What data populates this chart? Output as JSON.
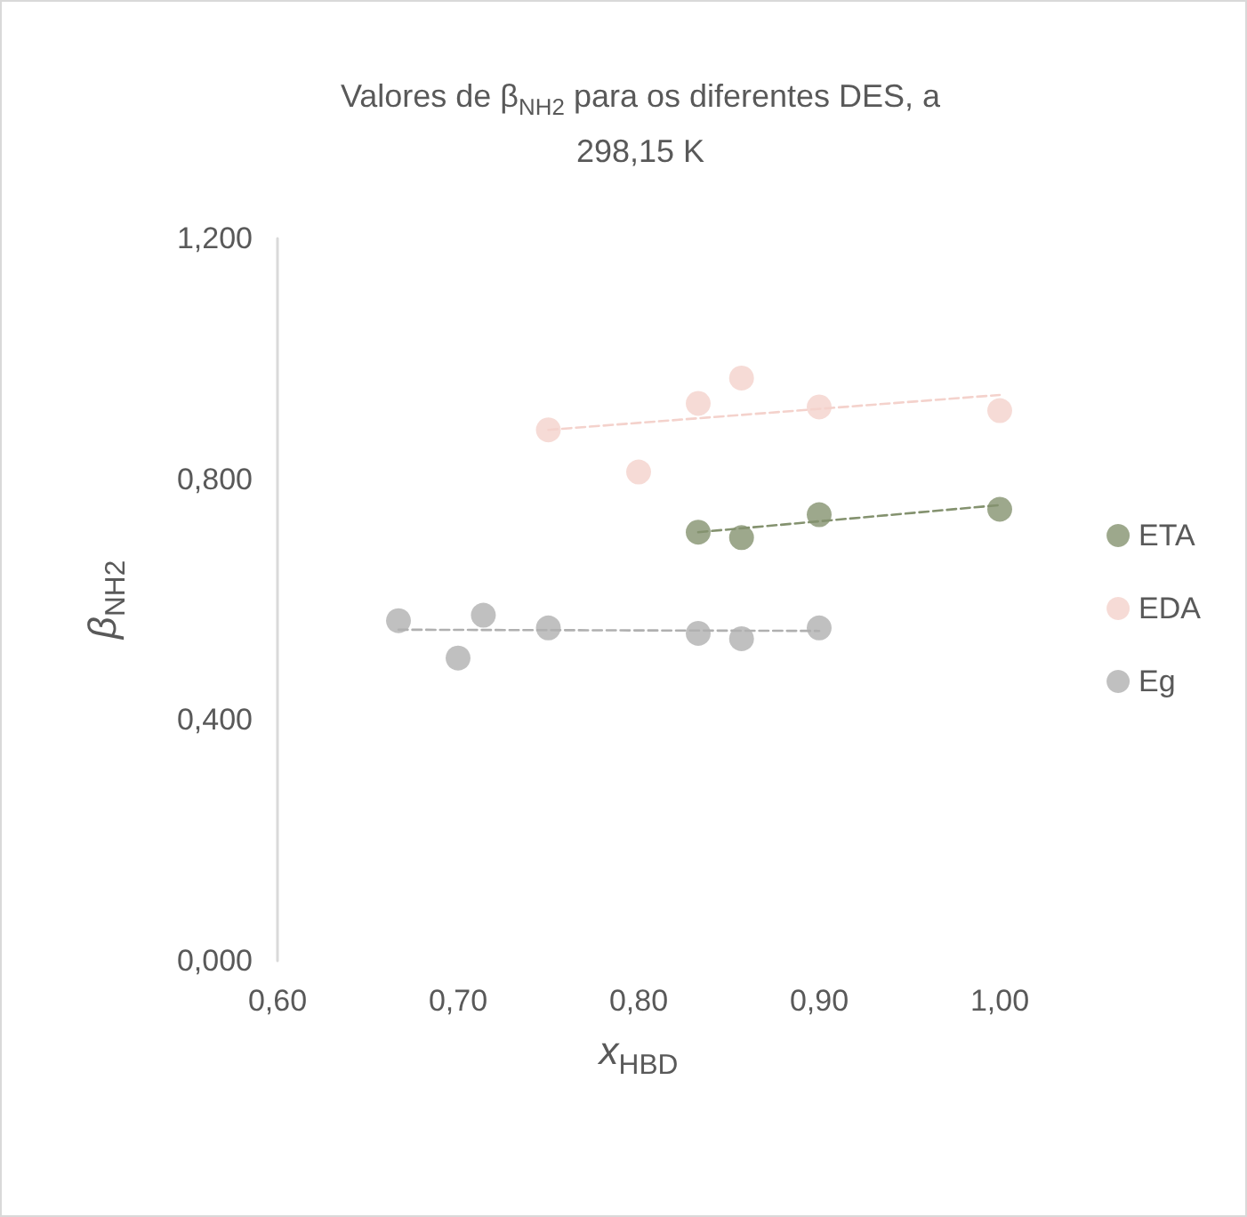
{
  "chart_data": {
    "type": "scatter",
    "title": "Valores de β$_{NH2}$ para os diferentes DES, a 298,15 K",
    "xlabel": "x$_{HBD}$",
    "ylabel": "β$_{NH2}$",
    "series": [
      {
        "name": "ETA",
        "color": "#84926f",
        "x": [
          0.833,
          0.857,
          0.9,
          1.0
        ],
        "values": [
          0.712,
          0.703,
          0.741,
          0.75
        ]
      },
      {
        "name": "EDA",
        "color": "#f4d2cc",
        "x": [
          0.75,
          0.8,
          0.833,
          0.857,
          0.9,
          1.0
        ],
        "values": [
          0.882,
          0.812,
          0.926,
          0.968,
          0.92,
          0.914
        ]
      },
      {
        "name": "Eg",
        "color": "#b0b0b0",
        "x": [
          0.667,
          0.7,
          0.714,
          0.75,
          0.833,
          0.857,
          0.9
        ],
        "values": [
          0.565,
          0.503,
          0.574,
          0.553,
          0.544,
          0.535,
          0.553
        ]
      },
      {
        "type": "line",
        "color": "#84926f",
        "x": [
          0.833,
          1.0
        ],
        "values": [
          0.712,
          0.757
        ],
        "line_style": "dashed",
        "marker": "none"
      },
      {
        "type": "line",
        "color": "#f4d2cc",
        "x": [
          0.75,
          1.0
        ],
        "values": [
          0.882,
          0.94
        ],
        "line_style": "dashed",
        "marker": "none"
      },
      {
        "type": "line",
        "color": "#b0b0b0",
        "x": [
          0.667,
          0.9
        ],
        "values": [
          0.55,
          0.548
        ],
        "line_style": "dashed",
        "marker": "none"
      }
    ],
    "xlim": [
      0.6,
      1.0
    ],
    "xticks": [
      {
        "value": 0.6,
        "label": "0,60"
      },
      {
        "value": 0.7,
        "label": "0,70"
      },
      {
        "value": 0.8,
        "label": "0,80"
      },
      {
        "value": 0.9,
        "label": "0,90"
      },
      {
        "value": 1.0,
        "label": "1,00"
      }
    ],
    "ylim": [
      0,
      1.2
    ],
    "yticks": [
      {
        "value": 0,
        "label": "0,000"
      },
      {
        "value": 0.4,
        "label": "0,400"
      },
      {
        "value": 0.8,
        "label": "0,800"
      },
      {
        "value": 1.2,
        "label": "1,200"
      }
    ],
    "grid": false,
    "legend": "right",
    "marker": "circle"
  }
}
